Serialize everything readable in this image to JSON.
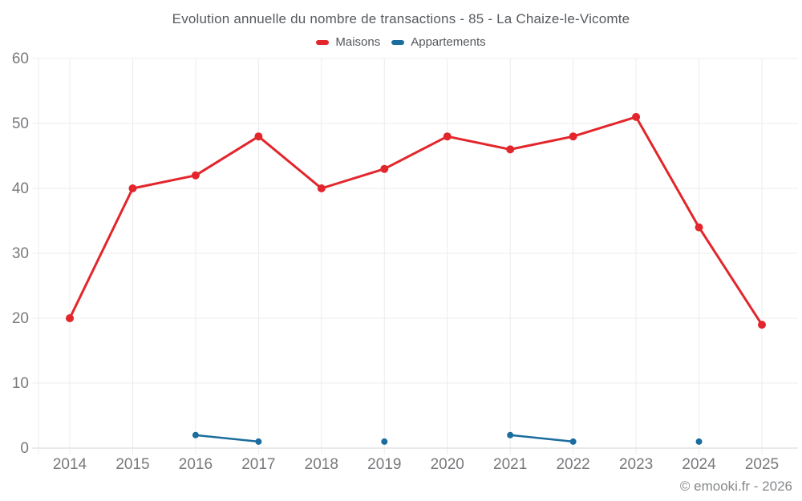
{
  "header": {
    "title": "Evolution annuelle du nombre de transactions - 85 - La Chaize-le-Vicomte"
  },
  "legend": {
    "position": "top",
    "items": [
      {
        "label": "Maisons",
        "color": "#e2262c"
      },
      {
        "label": "Appartements",
        "color": "#1a6d9e"
      }
    ]
  },
  "footer": {
    "attribution": "© emooki.fr - 2026"
  },
  "colors": {
    "grid": "#ececec",
    "axis_line": "#d6d6d6",
    "tick_text": "#77797c",
    "maisons": "#e2262c",
    "appartements": "#1a6d9e"
  },
  "chart_data": {
    "type": "line",
    "title": "Evolution annuelle du nombre de transactions - 85 - La Chaize-le-Vicomte",
    "x": [
      2014,
      2015,
      2016,
      2017,
      2018,
      2019,
      2020,
      2021,
      2022,
      2023,
      2024,
      2025
    ],
    "series": [
      {
        "name": "Maisons",
        "color": "#e2262c",
        "values": [
          20,
          40,
          42,
          48,
          40,
          43,
          48,
          46,
          48,
          51,
          34,
          19
        ],
        "line_width": 3,
        "point_radius": 5
      },
      {
        "name": "Appartements",
        "color": "#1a6d9e",
        "values": [
          null,
          null,
          2,
          1,
          null,
          1,
          null,
          2,
          1,
          null,
          1,
          null
        ],
        "line_width": 2.5,
        "point_radius": 4
      }
    ],
    "xlabel": "",
    "ylabel": "",
    "ylim": [
      0,
      60
    ],
    "yticks": [
      0,
      10,
      20,
      30,
      40,
      50,
      60
    ],
    "grid": true,
    "legend_position": "top"
  }
}
